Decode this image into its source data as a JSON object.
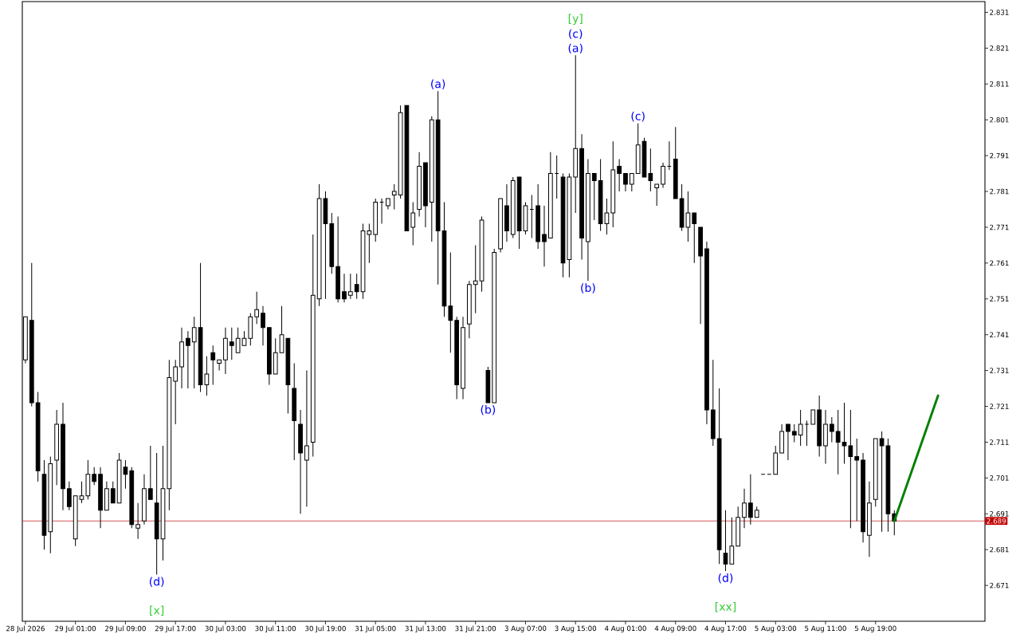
{
  "chart_data": {
    "type": "candlestick",
    "categories": [
      "28 Jul 2026",
      null,
      null,
      null,
      null,
      null,
      null,
      null,
      "29 Jul 01:00",
      null,
      null,
      null,
      null,
      null,
      null,
      null,
      "29 Jul 09:00",
      null,
      null,
      null,
      null,
      null,
      null,
      null,
      "29 Jul 17:00",
      null,
      null,
      null,
      null,
      null,
      null,
      null,
      "30 Jul 03:00",
      null,
      null,
      null,
      null,
      null,
      null,
      null,
      "30 Jul 11:00",
      null,
      null,
      null,
      null,
      null,
      null,
      null,
      "30 Jul 19:00",
      null,
      null,
      null,
      null,
      null,
      null,
      null,
      "31 Jul 05:00",
      null,
      null,
      null,
      null,
      null,
      null,
      null,
      "31 Jul 13:00",
      null,
      null,
      null,
      null,
      null,
      null,
      null,
      "31 Jul 21:00",
      null,
      null,
      null,
      null,
      null,
      null,
      null,
      "3 Aug 07:00",
      null,
      null,
      null,
      null,
      null,
      null,
      null,
      "3 Aug 15:00",
      null,
      null,
      null,
      null,
      null,
      null,
      null,
      "4 Aug 01:00",
      null,
      null,
      null,
      null,
      null,
      null,
      null,
      "4 Aug 09:00",
      null,
      null,
      null,
      null,
      null,
      null,
      null,
      "4 Aug 17:00",
      null,
      null,
      null,
      null,
      null,
      null,
      null,
      "5 Aug 03:00",
      null,
      null,
      null,
      null,
      null,
      null,
      null,
      "5 Aug 11:00",
      null,
      null,
      null,
      null,
      null,
      null,
      null,
      "5 Aug 19:00",
      null,
      null,
      null,
      null,
      null,
      null,
      null,
      null,
      null,
      null,
      null,
      null,
      null,
      null,
      null,
      null,
      null
    ],
    "ohlc": [
      [
        2.734,
        2.746,
        2.733,
        2.746
      ],
      [
        2.745,
        2.761,
        2.721,
        2.722
      ],
      [
        2.722,
        2.725,
        2.7,
        2.703
      ],
      [
        2.702,
        2.706,
        2.681,
        2.685
      ],
      [
        2.686,
        2.707,
        2.68,
        2.705
      ],
      [
        2.706,
        2.72,
        2.699,
        2.716
      ],
      [
        2.716,
        2.722,
        2.692,
        2.698
      ],
      [
        2.698,
        2.7,
        2.692,
        2.693
      ],
      [
        2.684,
        2.696,
        2.682,
        2.696
      ],
      [
        2.695,
        2.7,
        2.694,
        2.696
      ],
      [
        2.696,
        2.706,
        2.695,
        2.702
      ],
      [
        2.702,
        2.704,
        2.699,
        2.7
      ],
      [
        2.702,
        2.704,
        2.687,
        2.692
      ],
      [
        2.692,
        2.7,
        2.692,
        2.698
      ],
      [
        2.698,
        2.7,
        2.694,
        2.694
      ],
      [
        2.694,
        2.708,
        2.694,
        2.706
      ],
      [
        2.704,
        2.706,
        2.698,
        2.702
      ],
      [
        2.703,
        2.704,
        2.687,
        2.688
      ],
      [
        2.687,
        2.694,
        2.684,
        2.688
      ],
      [
        2.689,
        2.702,
        2.688,
        2.698
      ],
      [
        2.698,
        2.71,
        2.695,
        2.695
      ],
      [
        2.694,
        2.708,
        2.674,
        2.684
      ],
      [
        2.684,
        2.71,
        2.678,
        2.698
      ],
      [
        2.698,
        2.734,
        2.692,
        2.729
      ],
      [
        2.728,
        2.734,
        2.716,
        2.732
      ],
      [
        2.732,
        2.743,
        2.726,
        2.739
      ],
      [
        2.74,
        2.742,
        2.726,
        2.738
      ],
      [
        2.739,
        2.746,
        2.726,
        2.743
      ],
      [
        2.743,
        2.761,
        2.725,
        2.727
      ],
      [
        2.727,
        2.735,
        2.724,
        2.73
      ],
      [
        2.736,
        2.738,
        2.727,
        2.734
      ],
      [
        2.733,
        2.734,
        2.731,
        2.734
      ],
      [
        2.734,
        2.743,
        2.73,
        2.74
      ],
      [
        2.739,
        2.743,
        2.734,
        2.738
      ],
      [
        2.736,
        2.743,
        2.736,
        2.74
      ],
      [
        2.738,
        2.742,
        2.738,
        2.74
      ],
      [
        2.74,
        2.747,
        2.738,
        2.746
      ],
      [
        2.746,
        2.753,
        2.744,
        2.748
      ],
      [
        2.747,
        2.749,
        2.738,
        2.743
      ],
      [
        2.743,
        2.743,
        2.727,
        2.73
      ],
      [
        2.73,
        2.74,
        2.73,
        2.736
      ],
      [
        2.736,
        2.749,
        2.736,
        2.741
      ],
      [
        2.74,
        2.74,
        2.719,
        2.727
      ],
      [
        2.726,
        2.733,
        2.706,
        2.717
      ],
      [
        2.716,
        2.72,
        2.691,
        2.708
      ],
      [
        2.706,
        2.731,
        2.693,
        2.71
      ],
      [
        2.711,
        2.769,
        2.707,
        2.752
      ],
      [
        2.751,
        2.783,
        2.749,
        2.779
      ],
      [
        2.779,
        2.781,
        2.751,
        2.772
      ],
      [
        2.772,
        2.775,
        2.758,
        2.76
      ],
      [
        2.76,
        2.774,
        2.75,
        2.751
      ],
      [
        2.753,
        2.758,
        2.75,
        2.751
      ],
      [
        2.752,
        2.758,
        2.751,
        2.753
      ],
      [
        2.755,
        2.758,
        2.751,
        2.753
      ],
      [
        2.753,
        2.772,
        2.751,
        2.77
      ],
      [
        2.769,
        2.772,
        2.761,
        2.77
      ],
      [
        2.769,
        2.779,
        2.767,
        2.778
      ],
      [
        2.778,
        2.779,
        2.772,
        2.778
      ],
      [
        2.777,
        2.779,
        2.776,
        2.779
      ],
      [
        2.78,
        2.783,
        2.776,
        2.781
      ],
      [
        2.78,
        2.805,
        2.779,
        2.803
      ],
      [
        2.805,
        2.805,
        2.77,
        2.77
      ],
      [
        2.771,
        2.778,
        2.766,
        2.775
      ],
      [
        2.776,
        2.792,
        2.774,
        2.788
      ],
      [
        2.789,
        2.789,
        2.771,
        2.777
      ],
      [
        2.778,
        2.802,
        2.767,
        2.801
      ],
      [
        2.801,
        2.809,
        2.755,
        2.77
      ],
      [
        2.77,
        2.778,
        2.746,
        2.749
      ],
      [
        2.749,
        2.764,
        2.736,
        2.745
      ],
      [
        2.745,
        2.746,
        2.723,
        2.727
      ],
      [
        2.726,
        2.746,
        2.723,
        2.743
      ],
      [
        2.744,
        2.756,
        2.74,
        2.755
      ],
      [
        2.755,
        2.766,
        2.747,
        2.756
      ],
      [
        2.756,
        2.774,
        2.753,
        2.773
      ],
      [
        2.731,
        2.732,
        2.722,
        2.722
      ],
      [
        2.722,
        2.765,
        2.722,
        2.764
      ],
      [
        2.765,
        2.779,
        2.764,
        2.779
      ],
      [
        2.777,
        2.783,
        2.767,
        2.77
      ],
      [
        2.769,
        2.785,
        2.768,
        2.784
      ],
      [
        2.785,
        2.785,
        2.765,
        2.77
      ],
      [
        2.77,
        2.778,
        2.769,
        2.777
      ],
      [
        2.776,
        2.78,
        2.768,
        2.776
      ],
      [
        2.777,
        2.783,
        2.765,
        2.767
      ],
      [
        2.769,
        2.777,
        2.76,
        2.767
      ],
      [
        2.768,
        2.792,
        2.768,
        2.786
      ],
      [
        2.786,
        2.791,
        2.779,
        2.786
      ],
      [
        2.785,
        2.786,
        2.757,
        2.761
      ],
      [
        2.762,
        2.786,
        2.757,
        2.785
      ],
      [
        2.785,
        2.819,
        2.775,
        2.793
      ],
      [
        2.793,
        2.797,
        2.762,
        2.768
      ],
      [
        2.767,
        2.79,
        2.756,
        2.786
      ],
      [
        2.786,
        2.786,
        2.773,
        2.784
      ],
      [
        2.784,
        2.79,
        2.77,
        2.772
      ],
      [
        2.772,
        2.779,
        2.769,
        2.775
      ],
      [
        2.775,
        2.795,
        2.771,
        2.787
      ],
      [
        2.788,
        2.79,
        2.781,
        2.786
      ],
      [
        2.786,
        2.786,
        2.781,
        2.783
      ],
      [
        2.783,
        2.786,
        2.781,
        2.786
      ],
      [
        2.786,
        2.8,
        2.786,
        2.794
      ],
      [
        2.795,
        2.796,
        2.785,
        2.785
      ],
      [
        2.786,
        2.793,
        2.781,
        2.784
      ],
      [
        2.782,
        2.783,
        2.777,
        2.783
      ],
      [
        2.783,
        2.789,
        2.782,
        2.788
      ],
      [
        2.788,
        2.795,
        2.787,
        2.788
      ],
      [
        2.79,
        2.799,
        2.779,
        2.779
      ],
      [
        2.779,
        2.783,
        2.77,
        2.771
      ],
      [
        2.771,
        2.781,
        2.767,
        2.775
      ],
      [
        2.775,
        2.775,
        2.761,
        2.772
      ],
      [
        2.771,
        2.771,
        2.744,
        2.763
      ],
      [
        2.765,
        2.767,
        2.716,
        2.72
      ],
      [
        2.72,
        2.734,
        2.71,
        2.712
      ],
      [
        2.712,
        2.726,
        2.677,
        2.681
      ],
      [
        2.68,
        2.692,
        2.675,
        2.677
      ],
      [
        2.677,
        2.69,
        2.677,
        2.682
      ],
      [
        2.682,
        2.693,
        2.682,
        2.69
      ],
      [
        2.69,
        2.698,
        2.687,
        2.694
      ],
      [
        2.694,
        2.702,
        2.688,
        2.69
      ],
      [
        2.69,
        2.693,
        2.69,
        2.692
      ],
      [
        2.702,
        2.702,
        2.702,
        2.702
      ],
      [
        2.702,
        2.702,
        2.702,
        2.702
      ],
      [
        2.702,
        2.71,
        2.702,
        2.708
      ],
      [
        2.708,
        2.716,
        2.708,
        2.714
      ],
      [
        2.716,
        2.716,
        2.706,
        2.714
      ],
      [
        2.714,
        2.716,
        2.711,
        2.713
      ],
      [
        2.713,
        2.72,
        2.71,
        2.716
      ],
      [
        2.716,
        2.717,
        2.71,
        2.716
      ],
      [
        2.716,
        2.72,
        2.716,
        2.72
      ],
      [
        2.72,
        2.724,
        2.707,
        2.71
      ],
      [
        2.71,
        2.72,
        2.705,
        2.716
      ],
      [
        2.716,
        2.718,
        2.711,
        2.714
      ],
      [
        2.714,
        2.72,
        2.702,
        2.711
      ],
      [
        2.711,
        2.722,
        2.705,
        2.71
      ],
      [
        2.71,
        2.72,
        2.687,
        2.707
      ],
      [
        2.707,
        2.712,
        2.689,
        2.706
      ],
      [
        2.706,
        2.708,
        2.683,
        2.686
      ],
      [
        2.685,
        2.7,
        2.679,
        2.694
      ],
      [
        2.695,
        2.712,
        2.693,
        2.712
      ],
      [
        2.712,
        2.714,
        2.686,
        2.71
      ],
      [
        2.71,
        2.712,
        2.686,
        2.691
      ],
      [
        2.691,
        2.692,
        2.685,
        2.689
      ],
      null,
      null,
      null,
      null,
      null,
      null,
      null,
      null,
      null,
      null,
      null,
      null,
      null,
      null
    ],
    "series": [
      {
        "type": "line",
        "color": "#008000",
        "values": [
          null,
          null,
          null,
          null,
          null,
          null,
          null,
          null,
          null,
          null,
          null,
          null,
          null,
          null,
          null,
          null,
          null,
          null,
          null,
          null,
          null,
          null,
          null,
          null,
          null,
          null,
          null,
          null,
          null,
          null,
          null,
          null,
          null,
          null,
          null,
          null,
          null,
          null,
          null,
          null,
          null,
          null,
          null,
          null,
          null,
          null,
          null,
          null,
          null,
          null,
          null,
          null,
          null,
          null,
          null,
          null,
          null,
          null,
          null,
          null,
          null,
          null,
          null,
          null,
          null,
          null,
          null,
          null,
          null,
          null,
          null,
          null,
          null,
          null,
          null,
          null,
          null,
          null,
          null,
          null,
          null,
          null,
          null,
          null,
          null,
          null,
          null,
          null,
          null,
          null,
          null,
          null,
          null,
          null,
          null,
          null,
          null,
          null,
          null,
          null,
          null,
          null,
          null,
          null,
          null,
          null,
          null,
          null,
          null,
          null,
          null,
          null,
          null,
          null,
          null,
          null,
          null,
          null,
          null,
          null,
          null,
          null,
          null,
          null,
          null,
          null,
          null,
          null,
          null,
          null,
          null,
          null,
          null,
          null,
          null,
          null,
          null,
          null,
          null,
          2.689,
          null,
          null,
          null,
          null,
          null,
          null,
          2.724,
          null,
          null,
          null,
          null,
          null,
          null,
          null
        ]
      }
    ],
    "ylim": [
      2.661,
      2.834
    ],
    "yticks": [
      2.671,
      2.681,
      2.691,
      2.701,
      2.711,
      2.721,
      2.731,
      2.741,
      2.751,
      2.761,
      2.771,
      2.781,
      2.791,
      2.801,
      2.811,
      2.821,
      2.831
    ],
    "ref_lines": [
      {
        "axis": "y",
        "value": 2.689,
        "label": "2.689",
        "color": "#c00000"
      }
    ],
    "annotations": [
      {
        "text": "(d)",
        "y": 2.674
      },
      {
        "text": "[x]",
        "y": 2.674
      },
      {
        "text": "(a)",
        "y": 2.809
      },
      {
        "text": "(b)",
        "y": 2.722
      },
      {
        "text": "(a)",
        "y": 2.819
      },
      {
        "text": "(c)",
        "y": 2.819
      },
      {
        "text": "[y]",
        "y": 2.819
      },
      {
        "text": "(b)",
        "y": 2.756
      },
      {
        "text": "(c)",
        "y": 2.8
      },
      {
        "text": "(d)",
        "y": 2.675
      },
      {
        "text": "[xx]",
        "y": 2.675
      }
    ]
  }
}
